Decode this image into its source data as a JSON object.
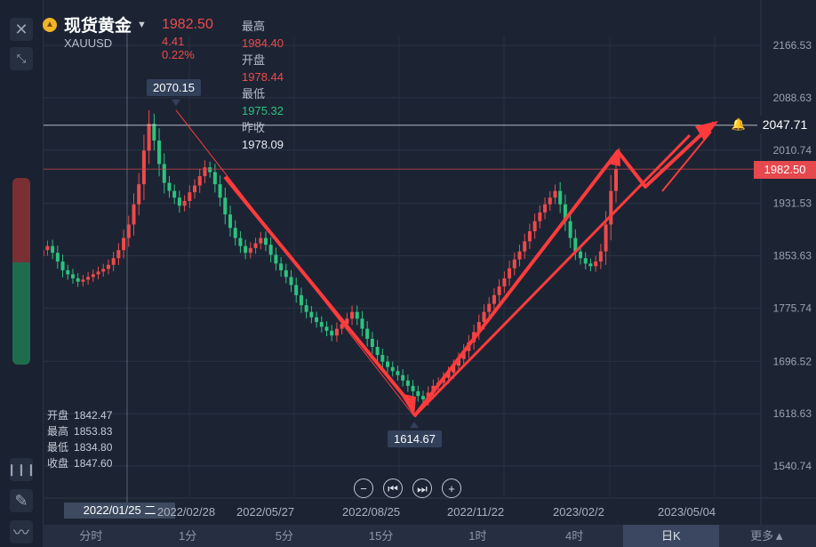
{
  "header": {
    "title": "现货黄金",
    "symbol": "XAUUSD",
    "price": "1982.50",
    "change": "4.41",
    "change_pct": "0.22%",
    "stats": {
      "high_label": "最高",
      "high": "1984.40",
      "open_label": "开盘",
      "open": "1978.44",
      "low_label": "最低",
      "low": "1975.32",
      "prev_close_label": "昨收",
      "prev_close": "1978.09"
    }
  },
  "ohlc_panel": {
    "open_label": "开盘",
    "open": "1842.47",
    "high_label": "最高",
    "high": "1853.83",
    "low_label": "最低",
    "low": "1834.80",
    "close_label": "收盘",
    "close": "1847.60"
  },
  "crosshair_date": "2022/01/25 二",
  "price_line_label": "2047.71",
  "current_price_flag": "1982.50",
  "callouts": {
    "high": "2070.15",
    "low": "1614.67"
  },
  "timeframe_tabs": [
    "分时",
    "1分",
    "5分",
    "15分",
    "1时",
    "4时",
    "日K",
    "更多▲"
  ],
  "active_tab": "日K",
  "icons": {
    "close": "close-icon",
    "collapse": "collapse-icon",
    "draw": "pen-icon",
    "indicator": "candles-icon",
    "line": "wave-icon",
    "alert": "bell-icon"
  },
  "colors": {
    "up": "#ef4a4a",
    "down": "#2ec27e",
    "arrow": "#ff3b3b",
    "background": "#1c2434"
  },
  "chart_data": {
    "type": "candlestick",
    "y_ticks": [
      "2166.53",
      "2088.63",
      "2010.74",
      "1931.53",
      "1853.63",
      "1775.74",
      "1696.52",
      "1618.63",
      "1540.74"
    ],
    "x_ticks": [
      "2022/02/28",
      "2022/05/27",
      "2022/08/25",
      "2022/11/22",
      "2023/02/2",
      "2023/05/04"
    ],
    "ylim": [
      1540.74,
      2166.53
    ],
    "annotations": {
      "high_point": 2070.15,
      "low_point": 1614.67,
      "horizontal_line": 2047.71,
      "current_price": 1982.5
    },
    "close_series": [
      1853,
      1862,
      1868,
      1858,
      1845,
      1832,
      1826,
      1820,
      1815,
      1818,
      1822,
      1826,
      1830,
      1834,
      1840,
      1850,
      1862,
      1880,
      1900,
      1930,
      1960,
      2010,
      2050,
      2025,
      1990,
      1962,
      1950,
      1940,
      1928,
      1935,
      1948,
      1958,
      1972,
      1985,
      1978,
      1960,
      1940,
      1915,
      1895,
      1880,
      1868,
      1858,
      1865,
      1872,
      1880,
      1870,
      1855,
      1842,
      1832,
      1822,
      1810,
      1795,
      1780,
      1770,
      1762,
      1755,
      1748,
      1742,
      1735,
      1745,
      1752,
      1760,
      1770,
      1760,
      1745,
      1730,
      1718,
      1706,
      1696,
      1688,
      1682,
      1676,
      1668,
      1660,
      1652,
      1645,
      1640,
      1650,
      1660,
      1665,
      1672,
      1680,
      1690,
      1700,
      1712,
      1725,
      1740,
      1755,
      1770,
      1782,
      1795,
      1808,
      1820,
      1835,
      1848,
      1860,
      1875,
      1890,
      1905,
      1918,
      1930,
      1940,
      1950,
      1930,
      1905,
      1880,
      1860,
      1850,
      1842,
      1838,
      1845,
      1860,
      1900,
      1950,
      1982
    ]
  }
}
